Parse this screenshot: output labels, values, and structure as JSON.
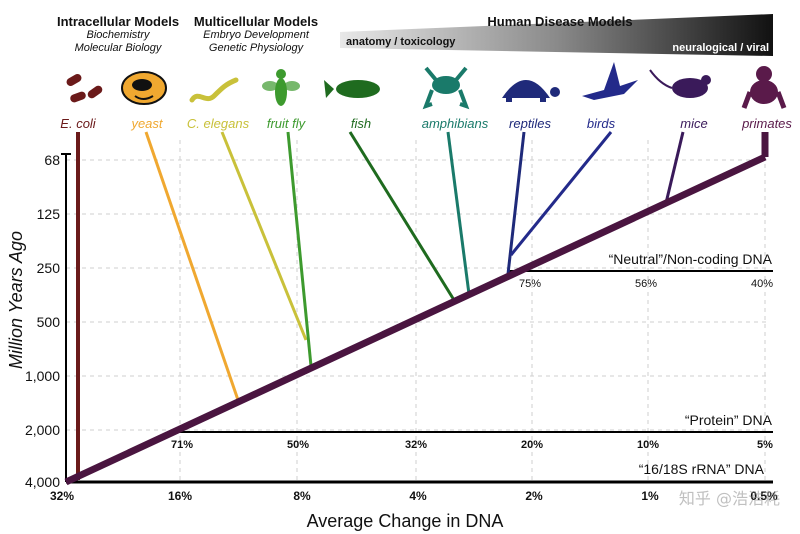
{
  "headers": {
    "intracellular": {
      "title": "Intracellular Models",
      "sub1": "Biochemistry",
      "sub2": "Molecular Biology"
    },
    "multicellular": {
      "title": "Multicellular Models",
      "sub1": "Embryo Development",
      "sub2": "Genetic Physiology"
    },
    "human": {
      "title": "Human Disease Models"
    },
    "wedge_left": "anatomy / toxicology",
    "wedge_right": "neuralogical / viral"
  },
  "organisms": [
    {
      "key": "ecoli",
      "label": "E. coli",
      "color": "#6b1a1a",
      "icon": "bacteria-icon"
    },
    {
      "key": "yeast",
      "label": "yeast",
      "color": "#f0a830",
      "icon": "yeast-cell-icon"
    },
    {
      "key": "celegans",
      "label": "C. elegans",
      "color": "#c9c13a",
      "icon": "worm-icon"
    },
    {
      "key": "fruitfly",
      "label": "fruit fly",
      "color": "#3d9a2e",
      "icon": "fly-icon"
    },
    {
      "key": "fish",
      "label": "fish",
      "color": "#1f6b1f",
      "icon": "fish-icon"
    },
    {
      "key": "amphibians",
      "label": "amphibians",
      "color": "#1a7a6a",
      "icon": "frog-icon"
    },
    {
      "key": "reptiles",
      "label": "reptiles",
      "color": "#1f2a7a",
      "icon": "turtle-icon"
    },
    {
      "key": "birds",
      "label": "birds",
      "color": "#232a8a",
      "icon": "bird-icon"
    },
    {
      "key": "mice",
      "label": "mice",
      "color": "#3a1a5a",
      "icon": "mouse-icon"
    },
    {
      "key": "primates",
      "label": "primates",
      "color": "#5a1a4a",
      "icon": "primate-icon"
    }
  ],
  "y_axis": {
    "label": "Million Years Ago",
    "ticks": [
      "68",
      "125",
      "250",
      "500",
      "1,000",
      "2,000",
      "4,000"
    ]
  },
  "x_axis": {
    "label": "Average Change in DNA",
    "ticks": [
      "32%",
      "16%",
      "8%",
      "4%",
      "2%",
      "1%",
      "0.5%"
    ]
  },
  "scales": {
    "neutral": {
      "label": "“Neutral”/Non-coding DNA",
      "ticks": [
        "75%",
        "56%",
        "40%"
      ]
    },
    "protein": {
      "label": "“Protein” DNA",
      "ticks": [
        "71%",
        "50%",
        "32%",
        "20%",
        "10%",
        "5%"
      ]
    },
    "rrna": {
      "label": "“16/18S rRNA” DNA"
    }
  },
  "watermark": "知乎 @浩浩耗",
  "colors": {
    "trunk": "#4a1540",
    "axis": "#000000",
    "wedge_light": "#d9d9d9",
    "wedge_dark": "#111111"
  }
}
